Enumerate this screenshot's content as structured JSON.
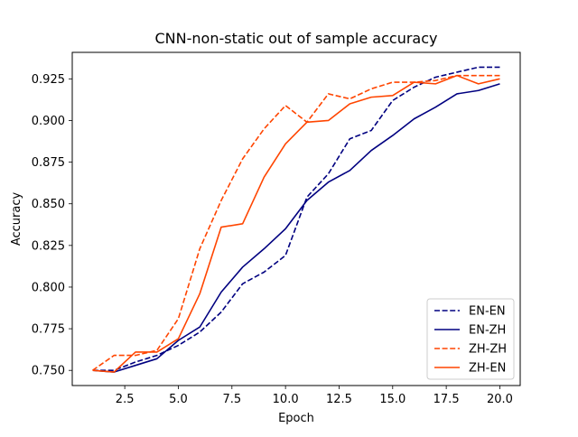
{
  "chart_data": {
    "type": "line",
    "title": "CNN-non-static out of sample accuracy",
    "xlabel": "Epoch",
    "ylabel": "Accuracy",
    "xlim": [
      0.05,
      20.95
    ],
    "ylim": [
      0.7409,
      0.9409
    ],
    "x_ticks": [
      2.5,
      5.0,
      7.5,
      10.0,
      12.5,
      15.0,
      17.5,
      20.0
    ],
    "x_tick_labels": [
      "2.5",
      "5.0",
      "7.5",
      "10.0",
      "12.5",
      "15.0",
      "17.5",
      "20.0"
    ],
    "y_ticks": [
      0.75,
      0.775,
      0.8,
      0.825,
      0.85,
      0.875,
      0.9,
      0.925
    ],
    "y_tick_labels": [
      "0.750",
      "0.775",
      "0.800",
      "0.825",
      "0.850",
      "0.875",
      "0.900",
      "0.925"
    ],
    "grid": false,
    "legend_position": "lower-right",
    "x": [
      1,
      2,
      3,
      4,
      5,
      6,
      7,
      8,
      9,
      10,
      11,
      12,
      13,
      14,
      15,
      16,
      17,
      18,
      19,
      20
    ],
    "series": [
      {
        "name": "EN-EN",
        "color": "#000080",
        "dash": "dashed",
        "values": [
          0.75,
          0.75,
          0.755,
          0.759,
          0.765,
          0.773,
          0.785,
          0.802,
          0.809,
          0.819,
          0.854,
          0.868,
          0.889,
          0.894,
          0.912,
          0.92,
          0.926,
          0.929,
          0.932,
          0.932
        ]
      },
      {
        "name": "EN-ZH",
        "color": "#000080",
        "dash": "solid",
        "values": [
          0.75,
          0.749,
          0.753,
          0.757,
          0.768,
          0.776,
          0.797,
          0.812,
          0.823,
          0.835,
          0.852,
          0.863,
          0.87,
          0.882,
          0.891,
          0.901,
          0.908,
          0.916,
          0.918,
          0.922
        ]
      },
      {
        "name": "ZH-ZH",
        "color": "#ff4500",
        "dash": "dashed",
        "values": [
          0.75,
          0.759,
          0.759,
          0.762,
          0.781,
          0.823,
          0.852,
          0.877,
          0.895,
          0.909,
          0.899,
          0.916,
          0.913,
          0.919,
          0.923,
          0.923,
          0.924,
          0.927,
          0.927,
          0.927
        ]
      },
      {
        "name": "ZH-EN",
        "color": "#ff4500",
        "dash": "solid",
        "values": [
          0.75,
          0.749,
          0.761,
          0.761,
          0.769,
          0.796,
          0.836,
          0.838,
          0.866,
          0.886,
          0.899,
          0.9,
          0.91,
          0.914,
          0.915,
          0.923,
          0.922,
          0.927,
          0.922,
          0.925
        ]
      }
    ]
  }
}
